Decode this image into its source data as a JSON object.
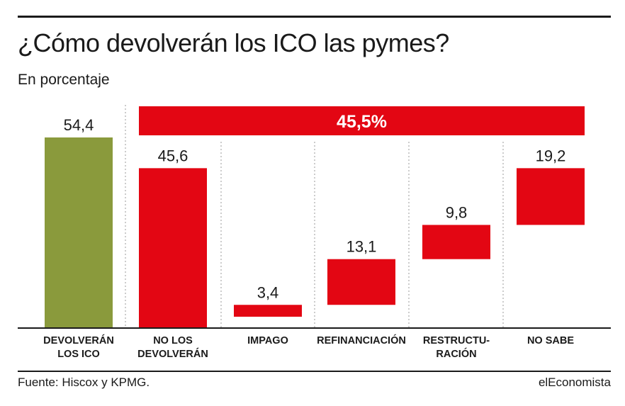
{
  "header": {
    "title": "¿Cómo devolverán los ICO las pymes?",
    "subtitle": "En porcentaje"
  },
  "footer": {
    "source": "Fuente: Hiscox y KPMG.",
    "brand": "elEconomista"
  },
  "colors": {
    "olive": "#8a9a3c",
    "red": "#e30613",
    "text": "#1a1a1a",
    "divider": "#9a9a9a"
  },
  "chart_data": {
    "type": "bar",
    "subtype": "waterfall",
    "categories": [
      [
        "DEVOLVERÁN",
        "LOS ICO"
      ],
      [
        "NO LOS",
        "DEVOLVERÁN"
      ],
      [
        "IMPAGO"
      ],
      [
        "REFINANCIACIÓN"
      ],
      [
        "RESTRUCTU-",
        "RACIÓN"
      ],
      [
        "NO SABE"
      ]
    ],
    "values": [
      54.4,
      45.6,
      3.4,
      13.1,
      9.8,
      19.2
    ],
    "value_labels": [
      "54,4",
      "45,6",
      "3,4",
      "13,1",
      "9,8",
      "19,2"
    ],
    "bar_colors": [
      "olive",
      "red",
      "red",
      "red",
      "red",
      "red"
    ],
    "waterfall": {
      "total_index": 1,
      "component_indices": [
        2,
        3,
        4,
        5
      ]
    },
    "summary_banner": {
      "label": "45,5%",
      "spans_indices": [
        1,
        2,
        3,
        4,
        5
      ]
    },
    "ylim": [
      0,
      54.4
    ],
    "grid": false,
    "legend": "none"
  }
}
